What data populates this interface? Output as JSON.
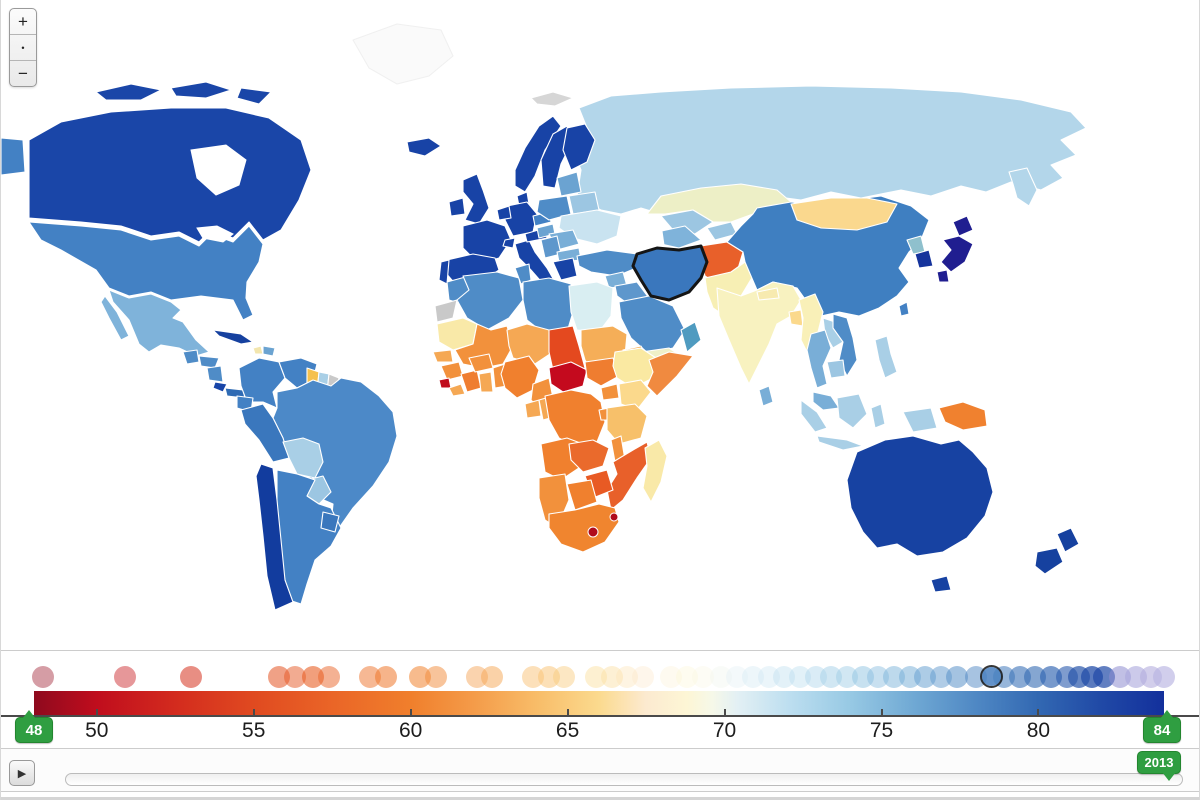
{
  "zoom": {
    "plus_label": "+",
    "reset_label": "•",
    "minus_label": "−"
  },
  "legend": {
    "domain": [
      48,
      84
    ],
    "ticks": [
      50,
      55,
      60,
      65,
      70,
      75,
      80
    ],
    "min_badge": "48",
    "max_badge": "84",
    "selected_dot_value": 78.5,
    "color_scale": [
      [
        48,
        "#8e0a1e"
      ],
      [
        50,
        "#c00d1d"
      ],
      [
        52.5,
        "#d32b1e"
      ],
      [
        55,
        "#e04a20"
      ],
      [
        57.5,
        "#ea6527"
      ],
      [
        60,
        "#f07f2c"
      ],
      [
        62,
        "#f49b49"
      ],
      [
        64,
        "#f8bc68"
      ],
      [
        66,
        "#fbda8e"
      ],
      [
        67.5,
        "#fcead0"
      ],
      [
        68.8,
        "#fdf6d5"
      ],
      [
        69.6,
        "#f6f8e8"
      ],
      [
        70.4,
        "#e3f0f4"
      ],
      [
        72,
        "#bedff0"
      ],
      [
        74,
        "#97c9e4"
      ],
      [
        76,
        "#70a9d4"
      ],
      [
        78,
        "#4f88c4"
      ],
      [
        80,
        "#3268b2"
      ],
      [
        82,
        "#2049a6"
      ],
      [
        84,
        "#13309c"
      ]
    ],
    "dots": [
      {
        "v": 48.3,
        "o": 0.4
      },
      {
        "v": 50.9,
        "o": 0.45
      },
      {
        "v": 53.0,
        "o": 0.55
      },
      {
        "v": 55.8,
        "o": 0.55
      },
      {
        "v": 56.3,
        "o": 0.5
      },
      {
        "v": 56.9,
        "o": 0.6
      },
      {
        "v": 57.4,
        "o": 0.5
      },
      {
        "v": 58.7,
        "o": 0.5
      },
      {
        "v": 59.2,
        "o": 0.55
      },
      {
        "v": 60.3,
        "o": 0.55
      },
      {
        "v": 60.8,
        "o": 0.5
      },
      {
        "v": 62.1,
        "o": 0.45
      },
      {
        "v": 62.6,
        "o": 0.5
      },
      {
        "v": 63.9,
        "o": 0.45
      },
      {
        "v": 64.4,
        "o": 0.5
      },
      {
        "v": 64.9,
        "o": 0.45
      },
      {
        "v": 65.9,
        "o": 0.4
      },
      {
        "v": 66.4,
        "o": 0.45
      },
      {
        "v": 66.9,
        "o": 0.4
      },
      {
        "v": 67.4,
        "o": 0.4
      },
      {
        "v": 68.3,
        "o": 0.35
      },
      {
        "v": 68.8,
        "o": 0.35
      },
      {
        "v": 69.3,
        "o": 0.35
      },
      {
        "v": 69.9,
        "o": 0.4
      },
      {
        "v": 70.4,
        "o": 0.4
      },
      {
        "v": 70.9,
        "o": 0.45
      },
      {
        "v": 71.4,
        "o": 0.4
      },
      {
        "v": 71.9,
        "o": 0.45
      },
      {
        "v": 72.4,
        "o": 0.4
      },
      {
        "v": 72.9,
        "o": 0.45
      },
      {
        "v": 73.4,
        "o": 0.5
      },
      {
        "v": 73.9,
        "o": 0.45
      },
      {
        "v": 74.4,
        "o": 0.5
      },
      {
        "v": 74.9,
        "o": 0.45
      },
      {
        "v": 75.4,
        "o": 0.5
      },
      {
        "v": 75.9,
        "o": 0.5
      },
      {
        "v": 76.4,
        "o": 0.55
      },
      {
        "v": 76.9,
        "o": 0.5
      },
      {
        "v": 77.4,
        "o": 0.55
      },
      {
        "v": 78.0,
        "o": 0.5
      },
      {
        "v": 78.9,
        "o": 0.55
      },
      {
        "v": 79.4,
        "o": 0.6
      },
      {
        "v": 79.9,
        "o": 0.6
      },
      {
        "v": 80.4,
        "o": 0.65
      },
      {
        "v": 80.9,
        "o": 0.6
      },
      {
        "v": 81.3,
        "o": 0.7
      },
      {
        "v": 81.7,
        "o": 0.75
      },
      {
        "v": 82.1,
        "o": 0.7
      },
      {
        "v": 82.6,
        "o": 0.55,
        "c": "#8e8cd0"
      },
      {
        "v": 83.1,
        "o": 0.6,
        "c": "#aaa6dc"
      },
      {
        "v": 83.6,
        "o": 0.6,
        "c": "#b4aede"
      },
      {
        "v": 84.0,
        "o": 0.65,
        "c": "#b9b3e2"
      }
    ]
  },
  "timeline": {
    "play_label": "▶",
    "year": "2013"
  },
  "map": {
    "selected_country": "iran",
    "selected_stroke": "#151515",
    "countries": {
      "canada": "#1a46a8",
      "usa": "#4381c4",
      "mexico": "#7fb3da",
      "guatemala": "#4f8cc7",
      "honduras": "#4f8cc7",
      "nicaragua": "#4f8cc7",
      "costa_rica": "#1845a8",
      "panama": "#2f6bb4",
      "cuba": "#16419f",
      "haiti": "#f3e6ae",
      "dominican_republic": "#6ba3d1",
      "colombia": "#4381c4",
      "venezuela": "#4381c4",
      "guyana": "#f5c14e",
      "suriname": "#a9cfe6",
      "french_guiana": "#c9c9c9",
      "ecuador": "#4381c4",
      "peru": "#3a77bd",
      "brazil": "#4c89c8",
      "bolivia": "#a9cfe6",
      "paraguay": "#9cc6e2",
      "chile": "#123c9e",
      "argentina": "#4381c4",
      "uruguay": "#3a77bd",
      "greenland": "#fafafa",
      "iceland": "#1843a6",
      "ireland": "#1843a6",
      "uk": "#1843a6",
      "norway": "#1843a6",
      "sweden": "#1843a6",
      "finland": "#1843a6",
      "denmark": "#1843a6",
      "germany": "#1843a6",
      "france": "#1843a6",
      "spain": "#1843a6",
      "portugal": "#1843a6",
      "italy": "#1843a6",
      "benelux": "#1843a6",
      "switzerland": "#1843a6",
      "austria": "#1843a6",
      "czech_slovakia": "#4381c4",
      "poland": "#4f8cc7",
      "hungary": "#6ba3d1",
      "baltics": "#6ba3d1",
      "belarus": "#9cc6e2",
      "ukraine": "#c9e3f0",
      "romania": "#79aed7",
      "balkans": "#5e97cc",
      "bulgaria": "#79aed7",
      "greece": "#1843a6",
      "russia": "#b3d6ea",
      "svalbard": "#d6d6d6",
      "turkey": "#4f8cc7",
      "syria": "#79aed7",
      "iraq": "#5e97cc",
      "jordan": "#5e97cc",
      "saudi_arabia": "#4f8cc7",
      "yemen": "#eff0c8",
      "oman": "#4f9bc0",
      "iran": "#3a77bd",
      "afghanistan": "#e8602a",
      "turkmenistan": "#7fb3da",
      "uzbekistan": "#9cc6e2",
      "kyrgyzstan_tajikistan": "#9cc6e2",
      "kazakhstan": "#edefc6",
      "pakistan": "#f7efb4",
      "india": "#f8f2c0",
      "nepal": "#f7eab0",
      "bangladesh": "#fbd98c",
      "sri_lanka": "#79aed7",
      "myanmar": "#f9f0b8",
      "thailand": "#79aed7",
      "laos": "#a9cfe6",
      "vietnam": "#4f8cc7",
      "cambodia": "#9cc6e2",
      "malaysia": "#79aed7",
      "indonesia": "#a9cfe6",
      "philippines": "#a9cfe6",
      "china": "#3f7fc1",
      "mongolia": "#fad88e",
      "north_korea": "#8fc0cd",
      "south_korea": "#15339c",
      "japan": "#201e90",
      "taiwan": "#4381c4",
      "morocco": "#4f8cc7",
      "western_sahara": "#c9c9c9",
      "algeria": "#4f8cc7",
      "tunisia": "#4f8cc7",
      "libya": "#4f8cc7",
      "egypt": "#d9eef2",
      "mauritania": "#f9e9a8",
      "mali": "#f2913c",
      "niger": "#f5a854",
      "chad": "#e4491f",
      "sudan": "#f5ae58",
      "eritrea": "#f5ae58",
      "senegal": "#f5a854",
      "guinea": "#f2913c",
      "sierra_leone": "#c00d1d",
      "liberia": "#f5a854",
      "ivory_coast": "#ef7d30",
      "ghana": "#f5a854",
      "burkina_faso": "#f2913c",
      "togo_benin": "#f2913c",
      "nigeria": "#f0802e",
      "cameroon": "#f2913c",
      "central_african_republic": "#c40a1e",
      "south_sudan": "#ef7d30",
      "ethiopia": "#fae9a2",
      "somalia": "#f08a40",
      "uganda": "#f2913c",
      "kenya": "#fbd98c",
      "gabon": "#f5a854",
      "congo": "#f5a854",
      "drc": "#f0802e",
      "rwanda_burundi": "#f2913c",
      "tanzania": "#f7c06a",
      "angola": "#f0802e",
      "zambia": "#ea6a2c",
      "malawi": "#f2913c",
      "mozambique": "#e8602a",
      "zimbabwe": "#e85a24",
      "botswana": "#f0802e",
      "namibia": "#f2913c",
      "south_africa": "#f0852f",
      "lesotho": "#b00c1c",
      "swaziland": "#b00c1c",
      "madagascar": "#f9e9a8",
      "australia": "#1742a2",
      "new_zealand": "#16419f",
      "papua_new_guinea": "#f0812f"
    }
  }
}
